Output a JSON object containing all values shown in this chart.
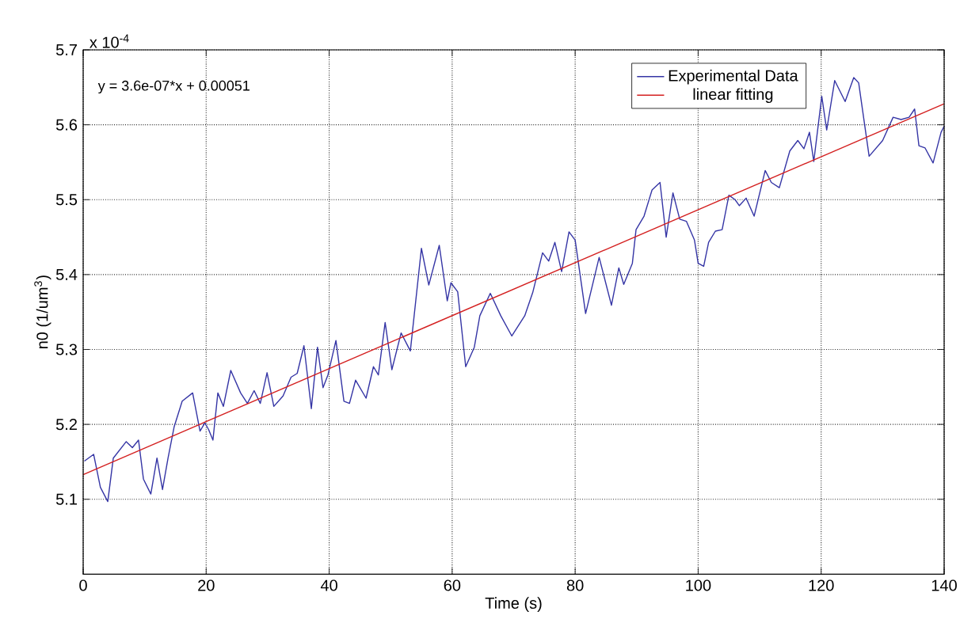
{
  "chart_data": {
    "type": "line",
    "xlabel": "Time (s)",
    "ylabel": "n0 (1/um$^{3}$)",
    "annotations": [
      "x 10$^{-4}$",
      "y = 3.6e-07*x + 0.00051"
    ],
    "xlim": [
      0,
      140
    ],
    "ylim": [
      5.0,
      5.7
    ],
    "xticks": [
      0,
      20,
      40,
      60,
      80,
      100,
      120,
      140
    ],
    "yticks": [
      5.1,
      5.2,
      5.3,
      5.4,
      5.5,
      5.6,
      5.7
    ],
    "grid": true,
    "legend": "top right",
    "series": [
      {
        "name": "Experimental Data",
        "color": "#3535a5",
        "x": [
          0.2,
          1.7,
          2.8,
          4,
          4.9,
          7,
          8,
          9,
          9.8,
          11,
          12,
          12.9,
          13.8,
          14.8,
          16.1,
          17.8,
          19,
          19.8,
          20.4,
          21.1,
          21.9,
          22.8,
          24,
          25.6,
          26.7,
          27.8,
          28.8,
          29.9,
          31,
          32.5,
          33.8,
          34.8,
          35.9,
          37.1,
          38.1,
          39,
          39.8,
          41.1,
          42.4,
          43.3,
          44.3,
          46,
          47.2,
          48,
          49.1,
          50.2,
          51.7,
          53.2,
          55,
          56.2,
          57.9,
          59.2,
          59.8,
          60.9,
          62.2,
          63.6,
          64.5,
          66.2,
          67.9,
          69.7,
          71.8,
          73.1,
          74.7,
          75.7,
          76.7,
          77.8,
          79,
          80,
          81.7,
          83.9,
          85.9,
          87.1,
          87.9,
          89.3,
          89.9,
          91.2,
          92.5,
          93.8,
          94.8,
          95.9,
          97,
          98.1,
          99.4,
          100,
          100.9,
          101.7,
          102.8,
          103.9,
          105,
          106,
          106.7,
          107.8,
          109.1,
          110.9,
          111.9,
          113.2,
          114.9,
          116.2,
          117.2,
          118.1,
          118.8,
          120.1,
          120.9,
          122.2,
          123.9,
          125.3,
          126.1,
          127.8,
          130,
          131.7,
          133,
          134.3,
          135.2,
          135.9,
          136.9,
          138.2,
          139.5,
          140
        ],
        "values": [
          5.151,
          5.16,
          5.116,
          5.097,
          5.155,
          5.177,
          5.169,
          5.179,
          5.127,
          5.107,
          5.155,
          5.113,
          5.155,
          5.197,
          5.231,
          5.242,
          5.191,
          5.202,
          5.193,
          5.179,
          5.242,
          5.224,
          5.272,
          5.242,
          5.228,
          5.245,
          5.228,
          5.269,
          5.224,
          5.238,
          5.263,
          5.268,
          5.305,
          5.221,
          5.303,
          5.249,
          5.266,
          5.312,
          5.231,
          5.228,
          5.259,
          5.235,
          5.277,
          5.266,
          5.336,
          5.273,
          5.322,
          5.298,
          5.435,
          5.386,
          5.439,
          5.365,
          5.389,
          5.377,
          5.277,
          5.303,
          5.345,
          5.375,
          5.345,
          5.318,
          5.345,
          5.376,
          5.429,
          5.418,
          5.443,
          5.404,
          5.457,
          5.446,
          5.348,
          5.423,
          5.359,
          5.409,
          5.387,
          5.415,
          5.46,
          5.478,
          5.513,
          5.523,
          5.45,
          5.509,
          5.474,
          5.471,
          5.446,
          5.415,
          5.411,
          5.443,
          5.458,
          5.46,
          5.506,
          5.5,
          5.492,
          5.502,
          5.478,
          5.539,
          5.523,
          5.516,
          5.565,
          5.579,
          5.568,
          5.59,
          5.551,
          5.638,
          5.593,
          5.659,
          5.631,
          5.663,
          5.656,
          5.558,
          5.579,
          5.61,
          5.607,
          5.61,
          5.621,
          5.572,
          5.569,
          5.549,
          5.59,
          5.598
        ]
      },
      {
        "name": "linear fitting",
        "color": "#d42020",
        "x": [
          0,
          140
        ],
        "values": [
          5.133,
          5.628
        ]
      }
    ]
  }
}
